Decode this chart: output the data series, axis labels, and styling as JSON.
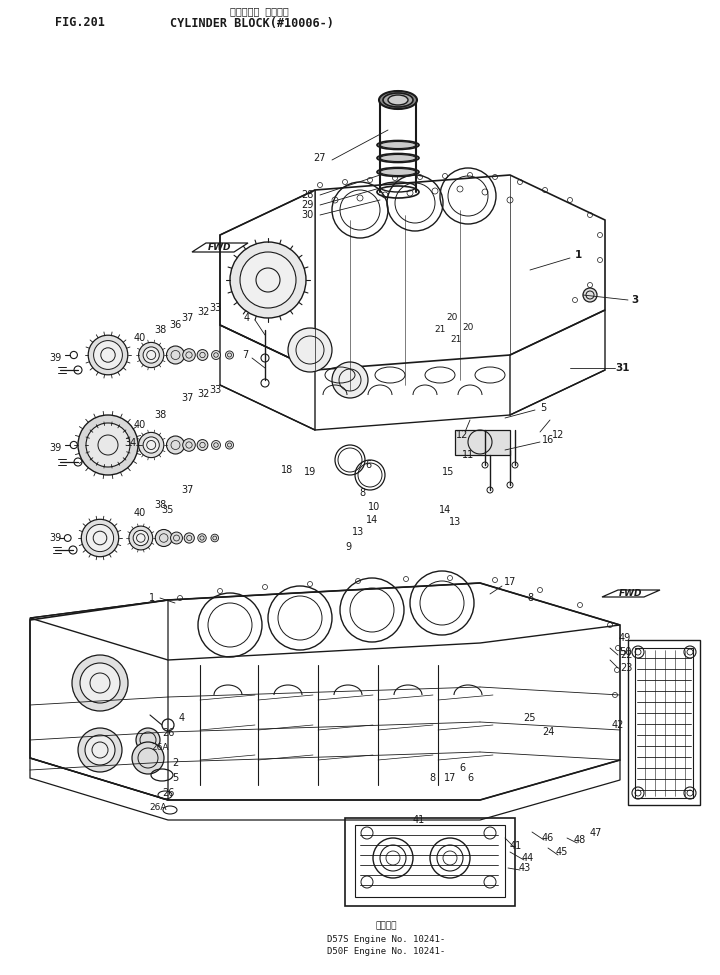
{
  "title_japanese": "シリンタ゚ ブロック",
  "title_fig": "FIG.201",
  "title_english": "CYLINDER BLOCK(#10006-)",
  "footer_lines": [
    "適用車種",
    "D57S Engine No. 10241-",
    "D50F Engine No. 10241-"
  ],
  "bg_color": "#ffffff",
  "line_color": "#1a1a1a",
  "text_color": "#1a1a1a",
  "fig_width": 7.2,
  "fig_height": 9.75,
  "dpi": 100
}
